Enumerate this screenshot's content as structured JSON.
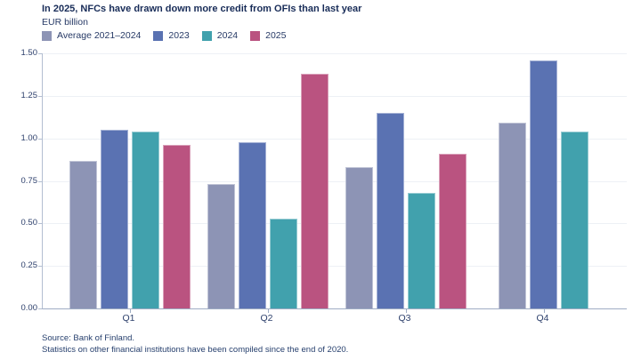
{
  "title": "In 2025, NFCs have drawn down more credit from OFIs than last year",
  "subtitle": "EUR billion",
  "source": {
    "line1": "Source: Bank of Finland.",
    "line2": "Statistics on other financial institutions have been compiled since the end of 2020."
  },
  "colors": {
    "text": "#1e3560",
    "axis": "#9fadc4",
    "grid": "#edf0f5",
    "background": "#ffffff",
    "series_average": "#8d94b5",
    "series_2023": "#5a72b2",
    "series_2024": "#41a1ad",
    "series_2025": "#ba5380"
  },
  "chart_data": {
    "type": "bar",
    "title": "In 2025, NFCs have drawn down more credit from OFIs than last year",
    "subtitle": "EUR billion",
    "categories": [
      "Q1",
      "Q2",
      "Q3",
      "Q4"
    ],
    "series": [
      {
        "name": "Average 2021–2024",
        "color": "#8d94b5",
        "values": [
          0.87,
          0.73,
          0.83,
          1.09
        ]
      },
      {
        "name": "2023",
        "color": "#5a72b2",
        "values": [
          1.05,
          0.98,
          1.15,
          1.46
        ]
      },
      {
        "name": "2024",
        "color": "#41a1ad",
        "values": [
          1.04,
          0.53,
          0.68,
          1.04
        ]
      },
      {
        "name": "2025",
        "color": "#ba5380",
        "values": [
          0.96,
          1.38,
          0.91,
          null
        ]
      }
    ],
    "xlabel": "",
    "ylabel": "EUR billion",
    "ylim": [
      0,
      1.5
    ],
    "yticks": [
      "0.00",
      "0.25",
      "0.50",
      "0.75",
      "1.00",
      "1.25",
      "1.50"
    ],
    "grid": true,
    "legend_position": "top"
  }
}
